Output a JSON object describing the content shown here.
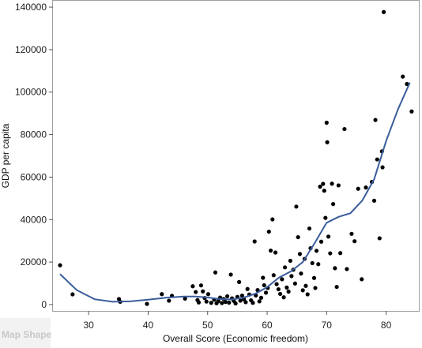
{
  "footer": {
    "map_shape_label": "Map Shape"
  },
  "chart_data": {
    "type": "scatter",
    "title": "",
    "xlabel": "Overall Score (Economic freedom)",
    "ylabel": "GDP per capita",
    "xlim": [
      24,
      85.5
    ],
    "ylim": [
      -3000,
      143000
    ],
    "x_ticks": [
      30,
      40,
      50,
      60,
      70,
      80
    ],
    "y_ticks": [
      0,
      20000,
      40000,
      60000,
      80000,
      100000,
      120000,
      140000
    ],
    "grid": false,
    "legend": "none",
    "colors": {
      "points": "#000000",
      "smoother": "#3a5d9c",
      "frame": "#a0a0a0",
      "map_shape_panel": "#f2f2f2",
      "map_shape_text": "#c8c8c8"
    },
    "series": [
      {
        "points": [
          [
            25.2,
            18500
          ],
          [
            27.3,
            4800
          ],
          [
            35.1,
            2600
          ],
          [
            35.3,
            1300
          ],
          [
            39.8,
            300
          ],
          [
            42.3,
            4900
          ],
          [
            43.5,
            1800
          ],
          [
            44.0,
            4100
          ],
          [
            46.2,
            2800
          ],
          [
            47.5,
            8600
          ],
          [
            48.0,
            5900
          ],
          [
            48.3,
            2100
          ],
          [
            48.5,
            1000
          ],
          [
            48.9,
            9000
          ],
          [
            49.2,
            6200
          ],
          [
            49.5,
            3100
          ],
          [
            49.8,
            1400
          ],
          [
            50.1,
            4900
          ],
          [
            50.6,
            800
          ],
          [
            51.1,
            2300
          ],
          [
            51.3,
            15100
          ],
          [
            51.5,
            600
          ],
          [
            51.8,
            1600
          ],
          [
            52.1,
            3300
          ],
          [
            52.4,
            700
          ],
          [
            52.7,
            2600
          ],
          [
            53.0,
            1200
          ],
          [
            53.3,
            3900
          ],
          [
            53.6,
            900
          ],
          [
            53.9,
            14100
          ],
          [
            54.1,
            2900
          ],
          [
            54.4,
            1700
          ],
          [
            54.7,
            500
          ],
          [
            55.0,
            3600
          ],
          [
            55.3,
            10600
          ],
          [
            55.5,
            1800
          ],
          [
            55.8,
            4200
          ],
          [
            56.1,
            2500
          ],
          [
            56.4,
            1100
          ],
          [
            56.7,
            7300
          ],
          [
            57.0,
            4700
          ],
          [
            57.3,
            2000
          ],
          [
            57.6,
            800
          ],
          [
            57.9,
            29700
          ],
          [
            58.1,
            4300
          ],
          [
            58.4,
            6800
          ],
          [
            58.7,
            1500
          ],
          [
            59.0,
            3200
          ],
          [
            59.3,
            12600
          ],
          [
            59.5,
            9100
          ],
          [
            59.8,
            5600
          ],
          [
            60.1,
            7800
          ],
          [
            60.3,
            34300
          ],
          [
            60.6,
            25400
          ],
          [
            60.9,
            40100
          ],
          [
            61.1,
            13800
          ],
          [
            61.4,
            24500
          ],
          [
            61.6,
            9600
          ],
          [
            61.9,
            7200
          ],
          [
            62.2,
            5000
          ],
          [
            62.5,
            11900
          ],
          [
            62.8,
            3400
          ],
          [
            63.0,
            17500
          ],
          [
            63.3,
            8000
          ],
          [
            63.6,
            6100
          ],
          [
            63.9,
            20600
          ],
          [
            64.1,
            13400
          ],
          [
            64.4,
            16400
          ],
          [
            64.7,
            9900
          ],
          [
            64.9,
            46100
          ],
          [
            65.2,
            31700
          ],
          [
            65.5,
            23800
          ],
          [
            65.7,
            14600
          ],
          [
            66.0,
            6700
          ],
          [
            66.3,
            21500
          ],
          [
            66.5,
            8800
          ],
          [
            66.8,
            4800
          ],
          [
            67.1,
            35800
          ],
          [
            67.3,
            26500
          ],
          [
            67.6,
            19500
          ],
          [
            67.9,
            12500
          ],
          [
            68.1,
            7800
          ],
          [
            68.3,
            25300
          ],
          [
            68.6,
            19000
          ],
          [
            68.9,
            55500
          ],
          [
            69.1,
            29600
          ],
          [
            69.4,
            56800
          ],
          [
            69.6,
            53600
          ],
          [
            69.8,
            40800
          ],
          [
            70.0,
            85600
          ],
          [
            70.1,
            76400
          ],
          [
            70.3,
            32000
          ],
          [
            70.6,
            24100
          ],
          [
            70.9,
            56900
          ],
          [
            71.1,
            47300
          ],
          [
            71.4,
            17100
          ],
          [
            71.7,
            8300
          ],
          [
            72.0,
            56100
          ],
          [
            72.3,
            24200
          ],
          [
            73.0,
            82600
          ],
          [
            73.4,
            16700
          ],
          [
            74.2,
            33300
          ],
          [
            74.7,
            29800
          ],
          [
            75.3,
            54500
          ],
          [
            75.9,
            11900
          ],
          [
            76.6,
            55100
          ],
          [
            77.6,
            57700
          ],
          [
            78.0,
            48900
          ],
          [
            78.2,
            86900
          ],
          [
            78.5,
            68300
          ],
          [
            78.9,
            31200
          ],
          [
            79.3,
            72100
          ],
          [
            79.4,
            64600
          ],
          [
            79.6,
            137700
          ],
          [
            82.8,
            107300
          ],
          [
            83.5,
            103800
          ],
          [
            84.3,
            90900
          ]
        ]
      }
    ],
    "smoother": [
      [
        25.2,
        14300
      ],
      [
        28,
        6800
      ],
      [
        31,
        2500
      ],
      [
        34,
        1300
      ],
      [
        37,
        1500
      ],
      [
        40,
        2300
      ],
      [
        43,
        3200
      ],
      [
        46,
        3800
      ],
      [
        48,
        3800
      ],
      [
        50,
        3300
      ],
      [
        52,
        2600
      ],
      [
        54,
        2400
      ],
      [
        56,
        3200
      ],
      [
        58,
        5100
      ],
      [
        60,
        8200
      ],
      [
        62,
        12700
      ],
      [
        64,
        15600
      ],
      [
        66,
        20000
      ],
      [
        68,
        29000
      ],
      [
        70,
        38500
      ],
      [
        72,
        41300
      ],
      [
        74,
        43000
      ],
      [
        76,
        49000
      ],
      [
        78,
        59000
      ],
      [
        80,
        77000
      ],
      [
        82,
        92000
      ],
      [
        84,
        104500
      ]
    ]
  }
}
